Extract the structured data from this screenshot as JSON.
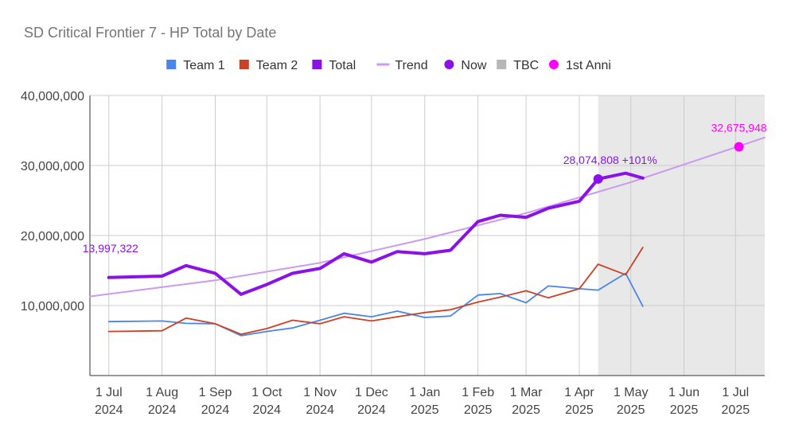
{
  "chart_data": {
    "type": "line",
    "title": "SD Critical Frontier 7 - HP Total by Date",
    "xlabel": "",
    "ylabel": "",
    "ylim": [
      0,
      40000000
    ],
    "y_ticks": [
      "10,000,000",
      "20,000,000",
      "30,000,000",
      "40,000,000"
    ],
    "x_ticks": [
      {
        "date": "2024-07-01",
        "line1": "1 Jul",
        "line2": "2024"
      },
      {
        "date": "2024-08-01",
        "line1": "1 Aug",
        "line2": "2024"
      },
      {
        "date": "2024-09-01",
        "line1": "1 Sep",
        "line2": "2024"
      },
      {
        "date": "2024-10-01",
        "line1": "1 Oct",
        "line2": "2024"
      },
      {
        "date": "2024-11-01",
        "line1": "1 Nov",
        "line2": "2024"
      },
      {
        "date": "2024-12-01",
        "line1": "1 Dec",
        "line2": "2024"
      },
      {
        "date": "2025-01-01",
        "line1": "1 Jan",
        "line2": "2025"
      },
      {
        "date": "2025-02-01",
        "line1": "1 Feb",
        "line2": "2025"
      },
      {
        "date": "2025-03-01",
        "line1": "1 Mar",
        "line2": "2025"
      },
      {
        "date": "2025-04-01",
        "line1": "1 Apr",
        "line2": "2025"
      },
      {
        "date": "2025-05-01",
        "line1": "1 May",
        "line2": "2025"
      },
      {
        "date": "2025-06-01",
        "line1": "1 Jun",
        "line2": "2025"
      },
      {
        "date": "2025-07-01",
        "line1": "1 Jul",
        "line2": "2025"
      }
    ],
    "xlim": [
      "2024-06-20",
      "2025-07-18"
    ],
    "grid": true,
    "legend_position": "top",
    "tbc_region": {
      "name": "TBC",
      "from": "2025-04-12",
      "to": "2025-07-18",
      "color": "#e8e8e8"
    },
    "series": [
      {
        "name": "Team 1",
        "color": "#4a86e8",
        "width": 1.8,
        "points": [
          [
            "2024-07-01",
            7700000
          ],
          [
            "2024-08-01",
            7800000
          ],
          [
            "2024-08-15",
            7450000
          ],
          [
            "2024-09-01",
            7400000
          ],
          [
            "2024-09-16",
            5700000
          ],
          [
            "2024-10-01",
            6300000
          ],
          [
            "2024-10-16",
            6800000
          ],
          [
            "2024-11-01",
            7900000
          ],
          [
            "2024-11-15",
            8900000
          ],
          [
            "2024-12-01",
            8400000
          ],
          [
            "2024-12-16",
            9200000
          ],
          [
            "2025-01-01",
            8300000
          ],
          [
            "2025-01-16",
            8500000
          ],
          [
            "2025-02-01",
            11500000
          ],
          [
            "2025-02-14",
            11700000
          ],
          [
            "2025-03-01",
            10400000
          ],
          [
            "2025-03-14",
            12800000
          ],
          [
            "2025-04-01",
            12400000
          ],
          [
            "2025-04-12",
            12200000
          ],
          [
            "2025-04-28",
            14600000
          ],
          [
            "2025-05-08",
            9900000
          ]
        ]
      },
      {
        "name": "Team 2",
        "color": "#cc4125",
        "width": 1.8,
        "points": [
          [
            "2024-07-01",
            6300000
          ],
          [
            "2024-08-01",
            6400000
          ],
          [
            "2024-08-15",
            8200000
          ],
          [
            "2024-09-01",
            7400000
          ],
          [
            "2024-09-16",
            5900000
          ],
          [
            "2024-10-01",
            6700000
          ],
          [
            "2024-10-16",
            7900000
          ],
          [
            "2024-11-01",
            7400000
          ],
          [
            "2024-11-15",
            8400000
          ],
          [
            "2024-12-01",
            7800000
          ],
          [
            "2024-12-16",
            8400000
          ],
          [
            "2025-01-01",
            9000000
          ],
          [
            "2025-01-16",
            9400000
          ],
          [
            "2025-02-01",
            10500000
          ],
          [
            "2025-02-14",
            11200000
          ],
          [
            "2025-03-01",
            12100000
          ],
          [
            "2025-03-14",
            11100000
          ],
          [
            "2025-04-01",
            12400000
          ],
          [
            "2025-04-12",
            15900000
          ],
          [
            "2025-04-28",
            14400000
          ],
          [
            "2025-05-08",
            18300000
          ]
        ]
      },
      {
        "name": "Total",
        "color": "#8a12e8",
        "width": 4,
        "points": [
          [
            "2024-07-01",
            13997322
          ],
          [
            "2024-08-01",
            14200000
          ],
          [
            "2024-08-15",
            15700000
          ],
          [
            "2024-09-01",
            14600000
          ],
          [
            "2024-09-16",
            11600000
          ],
          [
            "2024-10-01",
            13000000
          ],
          [
            "2024-10-16",
            14600000
          ],
          [
            "2024-11-01",
            15300000
          ],
          [
            "2024-11-15",
            17400000
          ],
          [
            "2024-12-01",
            16200000
          ],
          [
            "2024-12-16",
            17700000
          ],
          [
            "2025-01-01",
            17400000
          ],
          [
            "2025-01-16",
            17900000
          ],
          [
            "2025-02-01",
            22000000
          ],
          [
            "2025-02-14",
            22900000
          ],
          [
            "2025-03-01",
            22600000
          ],
          [
            "2025-03-14",
            23900000
          ],
          [
            "2025-04-01",
            24900000
          ],
          [
            "2025-04-12",
            28074808
          ],
          [
            "2025-04-28",
            28900000
          ],
          [
            "2025-05-08",
            28200000
          ]
        ]
      },
      {
        "name": "Trend",
        "color": "#cc99f0",
        "width": 2,
        "points": [
          [
            "2024-06-20",
            11300000
          ],
          [
            "2024-09-01",
            13600000
          ],
          [
            "2024-11-01",
            16100000
          ],
          [
            "2025-01-01",
            19500000
          ],
          [
            "2025-03-01",
            23200000
          ],
          [
            "2025-05-01",
            27600000
          ],
          [
            "2025-07-18",
            34000000
          ]
        ]
      }
    ],
    "markers": [
      {
        "name": "Now",
        "color": "#8a12e8",
        "date": "2025-04-12",
        "value": 28074808
      },
      {
        "name": "1st Anni",
        "color": "#ff00ff",
        "date": "2025-07-03",
        "value": 32675948
      }
    ],
    "legend": [
      {
        "label": "Team 1",
        "color": "#4a86e8",
        "kind": "square"
      },
      {
        "label": "Team 2",
        "color": "#cc4125",
        "kind": "square"
      },
      {
        "label": "Total",
        "color": "#8a12e8",
        "kind": "square"
      },
      {
        "label": "Trend",
        "color": "#cc99f0",
        "kind": "line"
      },
      {
        "label": "Now",
        "color": "#8a12e8",
        "kind": "dot"
      },
      {
        "label": "TBC",
        "color": "#b7b7b7",
        "kind": "square"
      },
      {
        "label": "1st Anni",
        "color": "#ff00ff",
        "kind": "dot"
      }
    ],
    "annotations": [
      {
        "text": "13,997,322",
        "color": "#8a12e8",
        "date": "2024-07-01",
        "value": 13997322,
        "anchor": "left-above"
      },
      {
        "text": "28,074,808 +101%",
        "color": "#8a12e8",
        "date": "2025-04-12",
        "value": 28074808,
        "anchor": "above"
      },
      {
        "text": "32,675,948",
        "color": "#ff00ff",
        "date": "2025-07-03",
        "value": 32675948,
        "anchor": "above"
      }
    ]
  }
}
